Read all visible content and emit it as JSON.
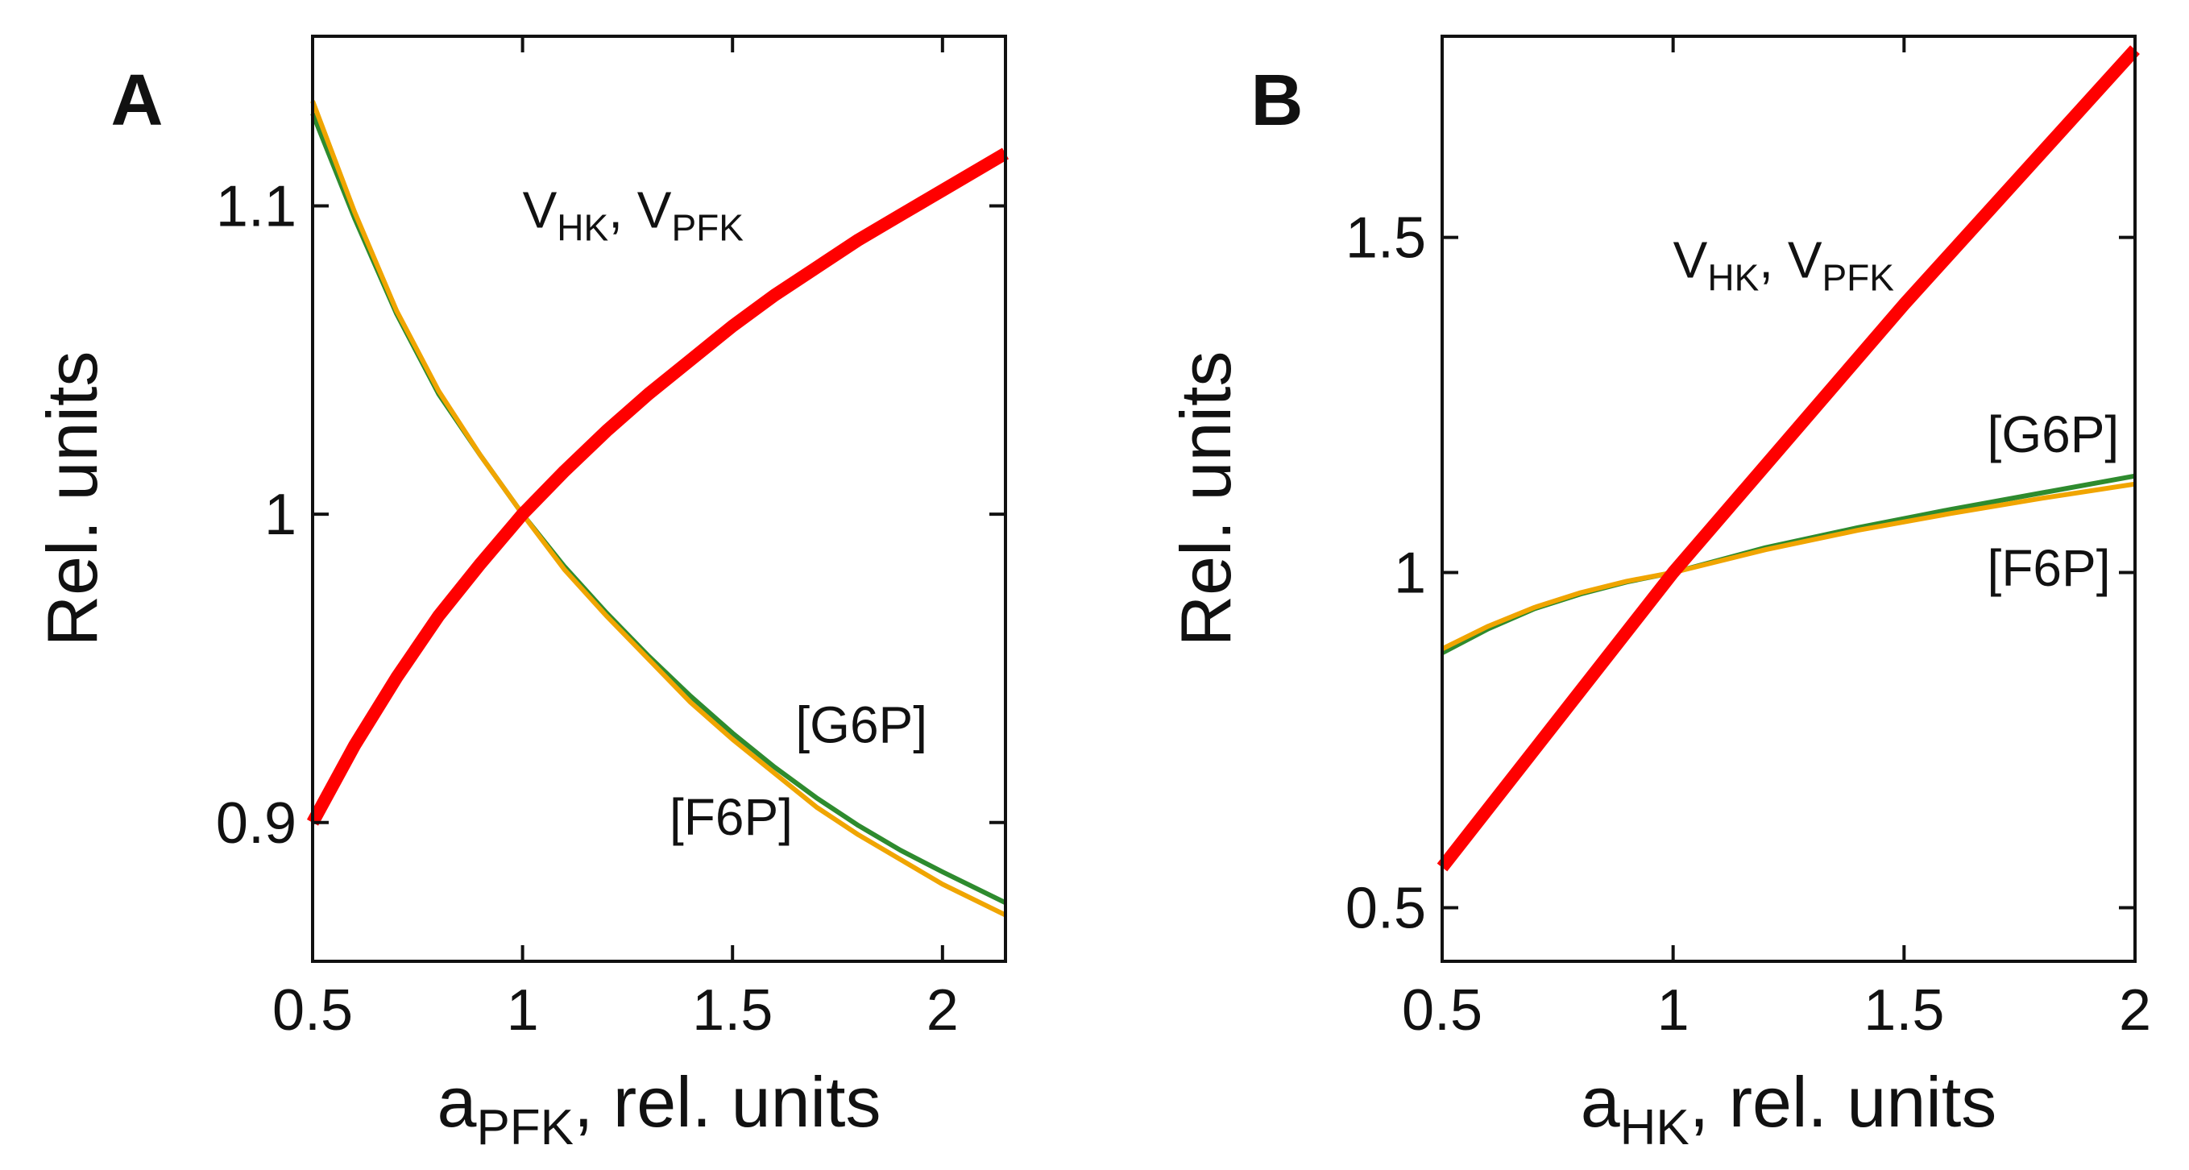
{
  "chart_data": [
    {
      "type": "line",
      "panel_label": "A",
      "xlabel": {
        "main": "a",
        "sub": "PFK",
        "rest": ", rel. units"
      },
      "ylabel": "Rel. units",
      "xlim": [
        0.5,
        2.15
      ],
      "ylim": [
        0.855,
        1.155
      ],
      "xticks": [
        0.5,
        1,
        1.5,
        2
      ],
      "xtick_labels": [
        "0.5",
        "1",
        "1.5",
        "2"
      ],
      "yticks": [
        0.9,
        1,
        1.1
      ],
      "ytick_labels": [
        "0.9",
        "1",
        "1.1"
      ],
      "grid": false,
      "series": [
        {
          "name": "V_HK, V_PFK",
          "color": "#ff0000",
          "width": "thick",
          "x": [
            0.5,
            0.6,
            0.7,
            0.8,
            0.9,
            1.0,
            1.1,
            1.2,
            1.3,
            1.4,
            1.5,
            1.6,
            1.7,
            1.8,
            1.9,
            2.0,
            2.15
          ],
          "y": [
            0.9,
            0.925,
            0.947,
            0.967,
            0.984,
            1.0,
            1.014,
            1.027,
            1.039,
            1.05,
            1.061,
            1.071,
            1.08,
            1.089,
            1.097,
            1.105,
            1.117
          ]
        },
        {
          "name": "[G6P]",
          "color": "#2e8b2e",
          "width": "thin",
          "x": [
            0.5,
            0.6,
            0.7,
            0.8,
            0.9,
            1.0,
            1.1,
            1.2,
            1.3,
            1.4,
            1.5,
            1.6,
            1.7,
            1.8,
            1.9,
            2.0,
            2.15
          ],
          "y": [
            1.13,
            1.096,
            1.065,
            1.039,
            1.019,
            1.0,
            0.983,
            0.968,
            0.954,
            0.941,
            0.929,
            0.918,
            0.908,
            0.899,
            0.891,
            0.884,
            0.874
          ]
        },
        {
          "name": "[F6P]",
          "color": "#f0a500",
          "width": "thin",
          "x": [
            0.5,
            0.6,
            0.7,
            0.8,
            0.9,
            1.0,
            1.1,
            1.2,
            1.3,
            1.4,
            1.5,
            1.6,
            1.7,
            1.8,
            1.9,
            2.0,
            2.15
          ],
          "y": [
            1.134,
            1.098,
            1.066,
            1.04,
            1.019,
            1.0,
            0.982,
            0.967,
            0.953,
            0.939,
            0.927,
            0.916,
            0.905,
            0.896,
            0.888,
            0.88,
            0.87
          ]
        }
      ],
      "annotations": [
        {
          "text": "V",
          "sub": "HK",
          "text2": ", V",
          "sub2": "PFK",
          "x": 1.0,
          "y": 1.093
        },
        {
          "text": "[G6P]",
          "x": 1.65,
          "y": 0.926
        },
        {
          "text": "[F6P]",
          "x": 1.35,
          "y": 0.896
        }
      ]
    },
    {
      "type": "line",
      "panel_label": "B",
      "xlabel": {
        "main": "a",
        "sub": "HK",
        "rest": ", rel. units"
      },
      "ylabel": "Rel. units",
      "xlim": [
        0.5,
        2.0
      ],
      "ylim": [
        0.42,
        1.8
      ],
      "xticks": [
        0.5,
        1,
        1.5,
        2
      ],
      "xtick_labels": [
        "0.5",
        "1",
        "1.5",
        "2"
      ],
      "yticks": [
        0.5,
        1,
        1.5
      ],
      "ytick_labels": [
        "0.5",
        "1",
        "1.5"
      ],
      "grid": false,
      "series": [
        {
          "name": "V_HK, V_PFK",
          "color": "#ff0000",
          "width": "thick",
          "x": [
            0.5,
            1.0,
            1.5,
            2.0
          ],
          "y": [
            0.56,
            1.0,
            1.4,
            1.78
          ]
        },
        {
          "name": "[G6P]",
          "color": "#2e8b2e",
          "width": "thin",
          "x": [
            0.5,
            0.6,
            0.7,
            0.8,
            0.9,
            1.0,
            1.2,
            1.4,
            1.6,
            1.8,
            2.0
          ],
          "y": [
            0.88,
            0.916,
            0.946,
            0.968,
            0.986,
            1.0,
            1.037,
            1.067,
            1.094,
            1.119,
            1.144
          ]
        },
        {
          "name": "[F6P]",
          "color": "#f0a500",
          "width": "thin",
          "x": [
            0.5,
            0.6,
            0.7,
            0.8,
            0.9,
            1.0,
            1.2,
            1.4,
            1.6,
            1.8,
            2.0
          ],
          "y": [
            0.886,
            0.92,
            0.948,
            0.97,
            0.987,
            1.0,
            1.034,
            1.063,
            1.088,
            1.111,
            1.132
          ]
        }
      ],
      "annotations": [
        {
          "text": "V",
          "sub": "HK",
          "text2": ", V",
          "sub2": "PFK",
          "x": 1.0,
          "y": 1.44
        },
        {
          "text": "[G6P]",
          "x": 1.68,
          "y": 1.18
        },
        {
          "text": "[F6P]",
          "x": 1.68,
          "y": 0.98
        }
      ]
    }
  ]
}
